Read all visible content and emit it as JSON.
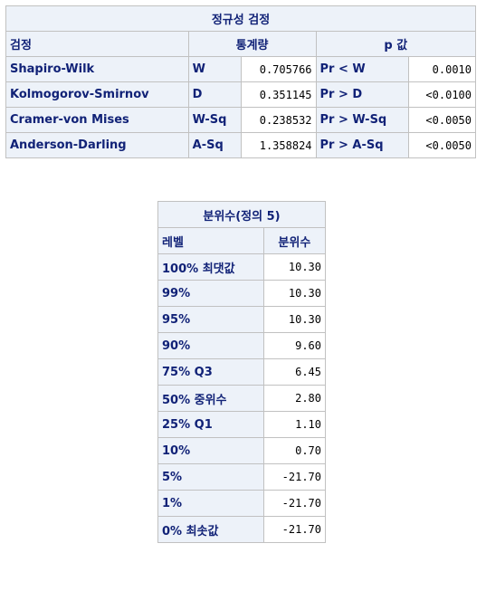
{
  "normality": {
    "title": "정규성 검정",
    "headers": {
      "test": "검정",
      "statistic": "통계량",
      "pvalue": "p 값"
    },
    "rows": [
      {
        "test": "Shapiro-Wilk",
        "stat_sym": "W",
        "stat_val": "0.705766",
        "p_sym": "Pr < W",
        "p_val": "0.0010"
      },
      {
        "test": "Kolmogorov-Smirnov",
        "stat_sym": "D",
        "stat_val": "0.351145",
        "p_sym": "Pr > D",
        "p_val": "<0.0100"
      },
      {
        "test": "Cramer-von Mises",
        "stat_sym": "W-Sq",
        "stat_val": "0.238532",
        "p_sym": "Pr > W-Sq",
        "p_val": "<0.0050"
      },
      {
        "test": "Anderson-Darling",
        "stat_sym": "A-Sq",
        "stat_val": "1.358824",
        "p_sym": "Pr > A-Sq",
        "p_val": "<0.0050"
      }
    ]
  },
  "quantiles": {
    "title": "분위수(정의 5)",
    "headers": {
      "level": "레벨",
      "quantile": "분위수"
    },
    "rows": [
      {
        "level": "100% 최댓값",
        "value": "10.30"
      },
      {
        "level": "99%",
        "value": "10.30"
      },
      {
        "level": "95%",
        "value": "10.30"
      },
      {
        "level": "90%",
        "value": "9.60"
      },
      {
        "level": "75% Q3",
        "value": "6.45"
      },
      {
        "level": "50% 중위수",
        "value": "2.80"
      },
      {
        "level": "25% Q1",
        "value": "1.10"
      },
      {
        "level": "10%",
        "value": "0.70"
      },
      {
        "level": "5%",
        "value": "-21.70"
      },
      {
        "level": "1%",
        "value": "-21.70"
      },
      {
        "level": "0% 최솟값",
        "value": "-21.70"
      }
    ]
  }
}
